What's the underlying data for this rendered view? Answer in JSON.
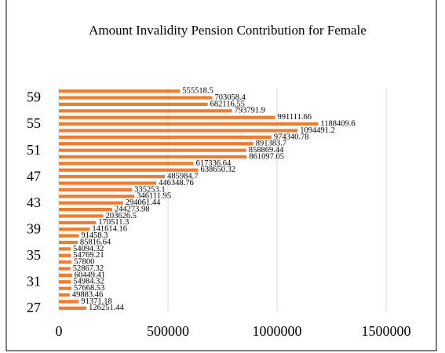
{
  "chart_data": {
    "type": "barh",
    "title": "Amount Invalidity Pension Contribution for Female",
    "categories": [
      "27",
      null,
      null,
      null,
      "31",
      null,
      null,
      null,
      "35",
      null,
      null,
      null,
      "39",
      null,
      null,
      null,
      "43",
      null,
      null,
      null,
      "47",
      null,
      null,
      null,
      "51",
      null,
      null,
      null,
      "55",
      null,
      null,
      null,
      "59",
      null
    ],
    "values": [
      126251.44,
      91371.18,
      49883.46,
      57668.53,
      54984.32,
      60449.41,
      52867.32,
      57800,
      54769.21,
      54094.32,
      85816.64,
      91458.3,
      141614.16,
      170511.3,
      203626.5,
      244273.98,
      294061.44,
      346111.95,
      335253.1,
      446348.76,
      485984.7,
      638650.32,
      617336.64,
      861097.05,
      858869.44,
      891383.7,
      974340.78,
      1094491.2,
      1188409.6,
      991111.66,
      793791.9,
      682116.55,
      703058.4,
      555518.5
    ],
    "color": "#ed7d31",
    "xlim": [
      0,
      1500000
    ],
    "xticks": [
      0,
      500000,
      1000000,
      1500000
    ],
    "grid": true
  }
}
